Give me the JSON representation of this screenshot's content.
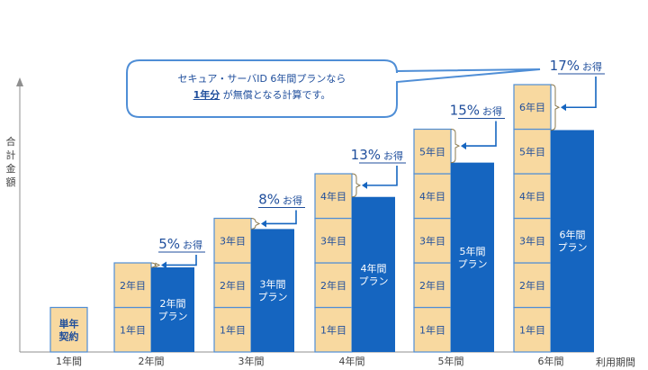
{
  "chart_data": {
    "type": "bar",
    "ylabel": "合計金額",
    "xlabel": "利用期間",
    "categories": [
      "1年間",
      "2年間",
      "3年間",
      "4年間",
      "5年間",
      "6年間"
    ],
    "single_contract_label": "単年\n契約",
    "year_block_labels": [
      "1年目",
      "2年目",
      "3年目",
      "4年目",
      "5年目",
      "6年目"
    ],
    "series": [
      {
        "name": "単年契約",
        "values": [
          1,
          2,
          3,
          4,
          5,
          6
        ]
      },
      {
        "name": "プラン",
        "values": [
          null,
          1.9,
          2.76,
          3.48,
          4.25,
          4.98
        ]
      }
    ],
    "plan_labels": [
      "",
      "2年間\nプラン",
      "3年間\nプラン",
      "4年間\nプラン",
      "5年間\nプラン",
      "6年間\nプラン"
    ],
    "discounts": [
      "",
      "5%",
      "8%",
      "13%",
      "15%",
      "17%"
    ],
    "discount_suffix": "お得",
    "colors": {
      "single": "#f8d9a0",
      "single_border": "#4f8ed6",
      "plan": "#1565c0",
      "text": "#1f4e9c"
    }
  },
  "callout": {
    "line1": "セキュア・サーバID 6年間プランなら",
    "line2_a": "1年分",
    "line2_b": " が無償となる計算です。"
  }
}
